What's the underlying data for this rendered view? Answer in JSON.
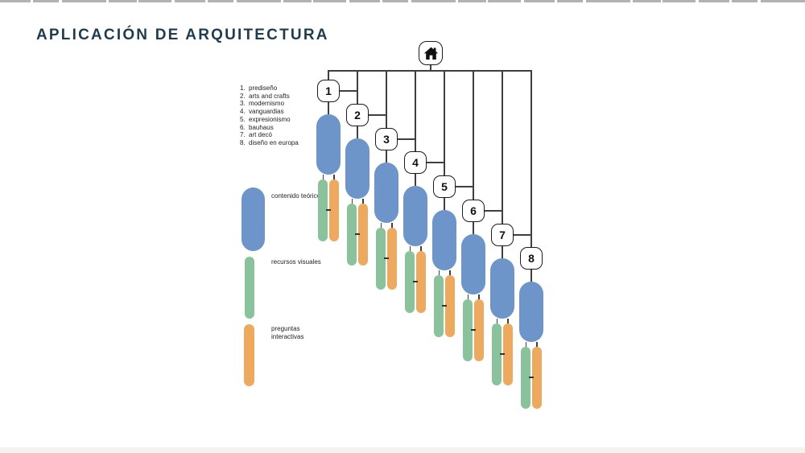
{
  "title": "APLICACIÓN DE ARQUITECTURA",
  "topics": [
    {
      "num": "1.",
      "label": "prediseño"
    },
    {
      "num": "2.",
      "label": "arts and crafts"
    },
    {
      "num": "3.",
      "label": "modernismo"
    },
    {
      "num": "4.",
      "label": "vanguardias"
    },
    {
      "num": "5.",
      "label": "expresionismo"
    },
    {
      "num": "6.",
      "label": "bauhaus"
    },
    {
      "num": "7.",
      "label": "art decó"
    },
    {
      "num": "8.",
      "label": "diseño en europa"
    }
  ],
  "legend": [
    {
      "id": "contenido-teorico",
      "label": "contenido teórico",
      "color": "#6d95c9",
      "shape": "wide"
    },
    {
      "id": "recursos-visuales",
      "label": "recursos visuales",
      "color": "#8ac39b",
      "shape": "thin"
    },
    {
      "id": "preguntas-interactivas",
      "label": "preguntas interactivas",
      "color": "#edaa5f",
      "shape": "thin"
    }
  ],
  "diagram": {
    "root_icon": "home-icon",
    "nodes": [
      "1",
      "2",
      "3",
      "4",
      "5",
      "6",
      "7",
      "8"
    ],
    "cluster_pills": [
      "contenido-teorico",
      "recursos-visuales",
      "preguntas-interactivas"
    ]
  },
  "colors": {
    "title": "#1e3c4e",
    "blue": "#6d95c9",
    "green": "#8ac39b",
    "orange": "#edaa5f",
    "line": "#3f3f3f",
    "node_border": "#1b1b1b",
    "icon": "#111111"
  }
}
